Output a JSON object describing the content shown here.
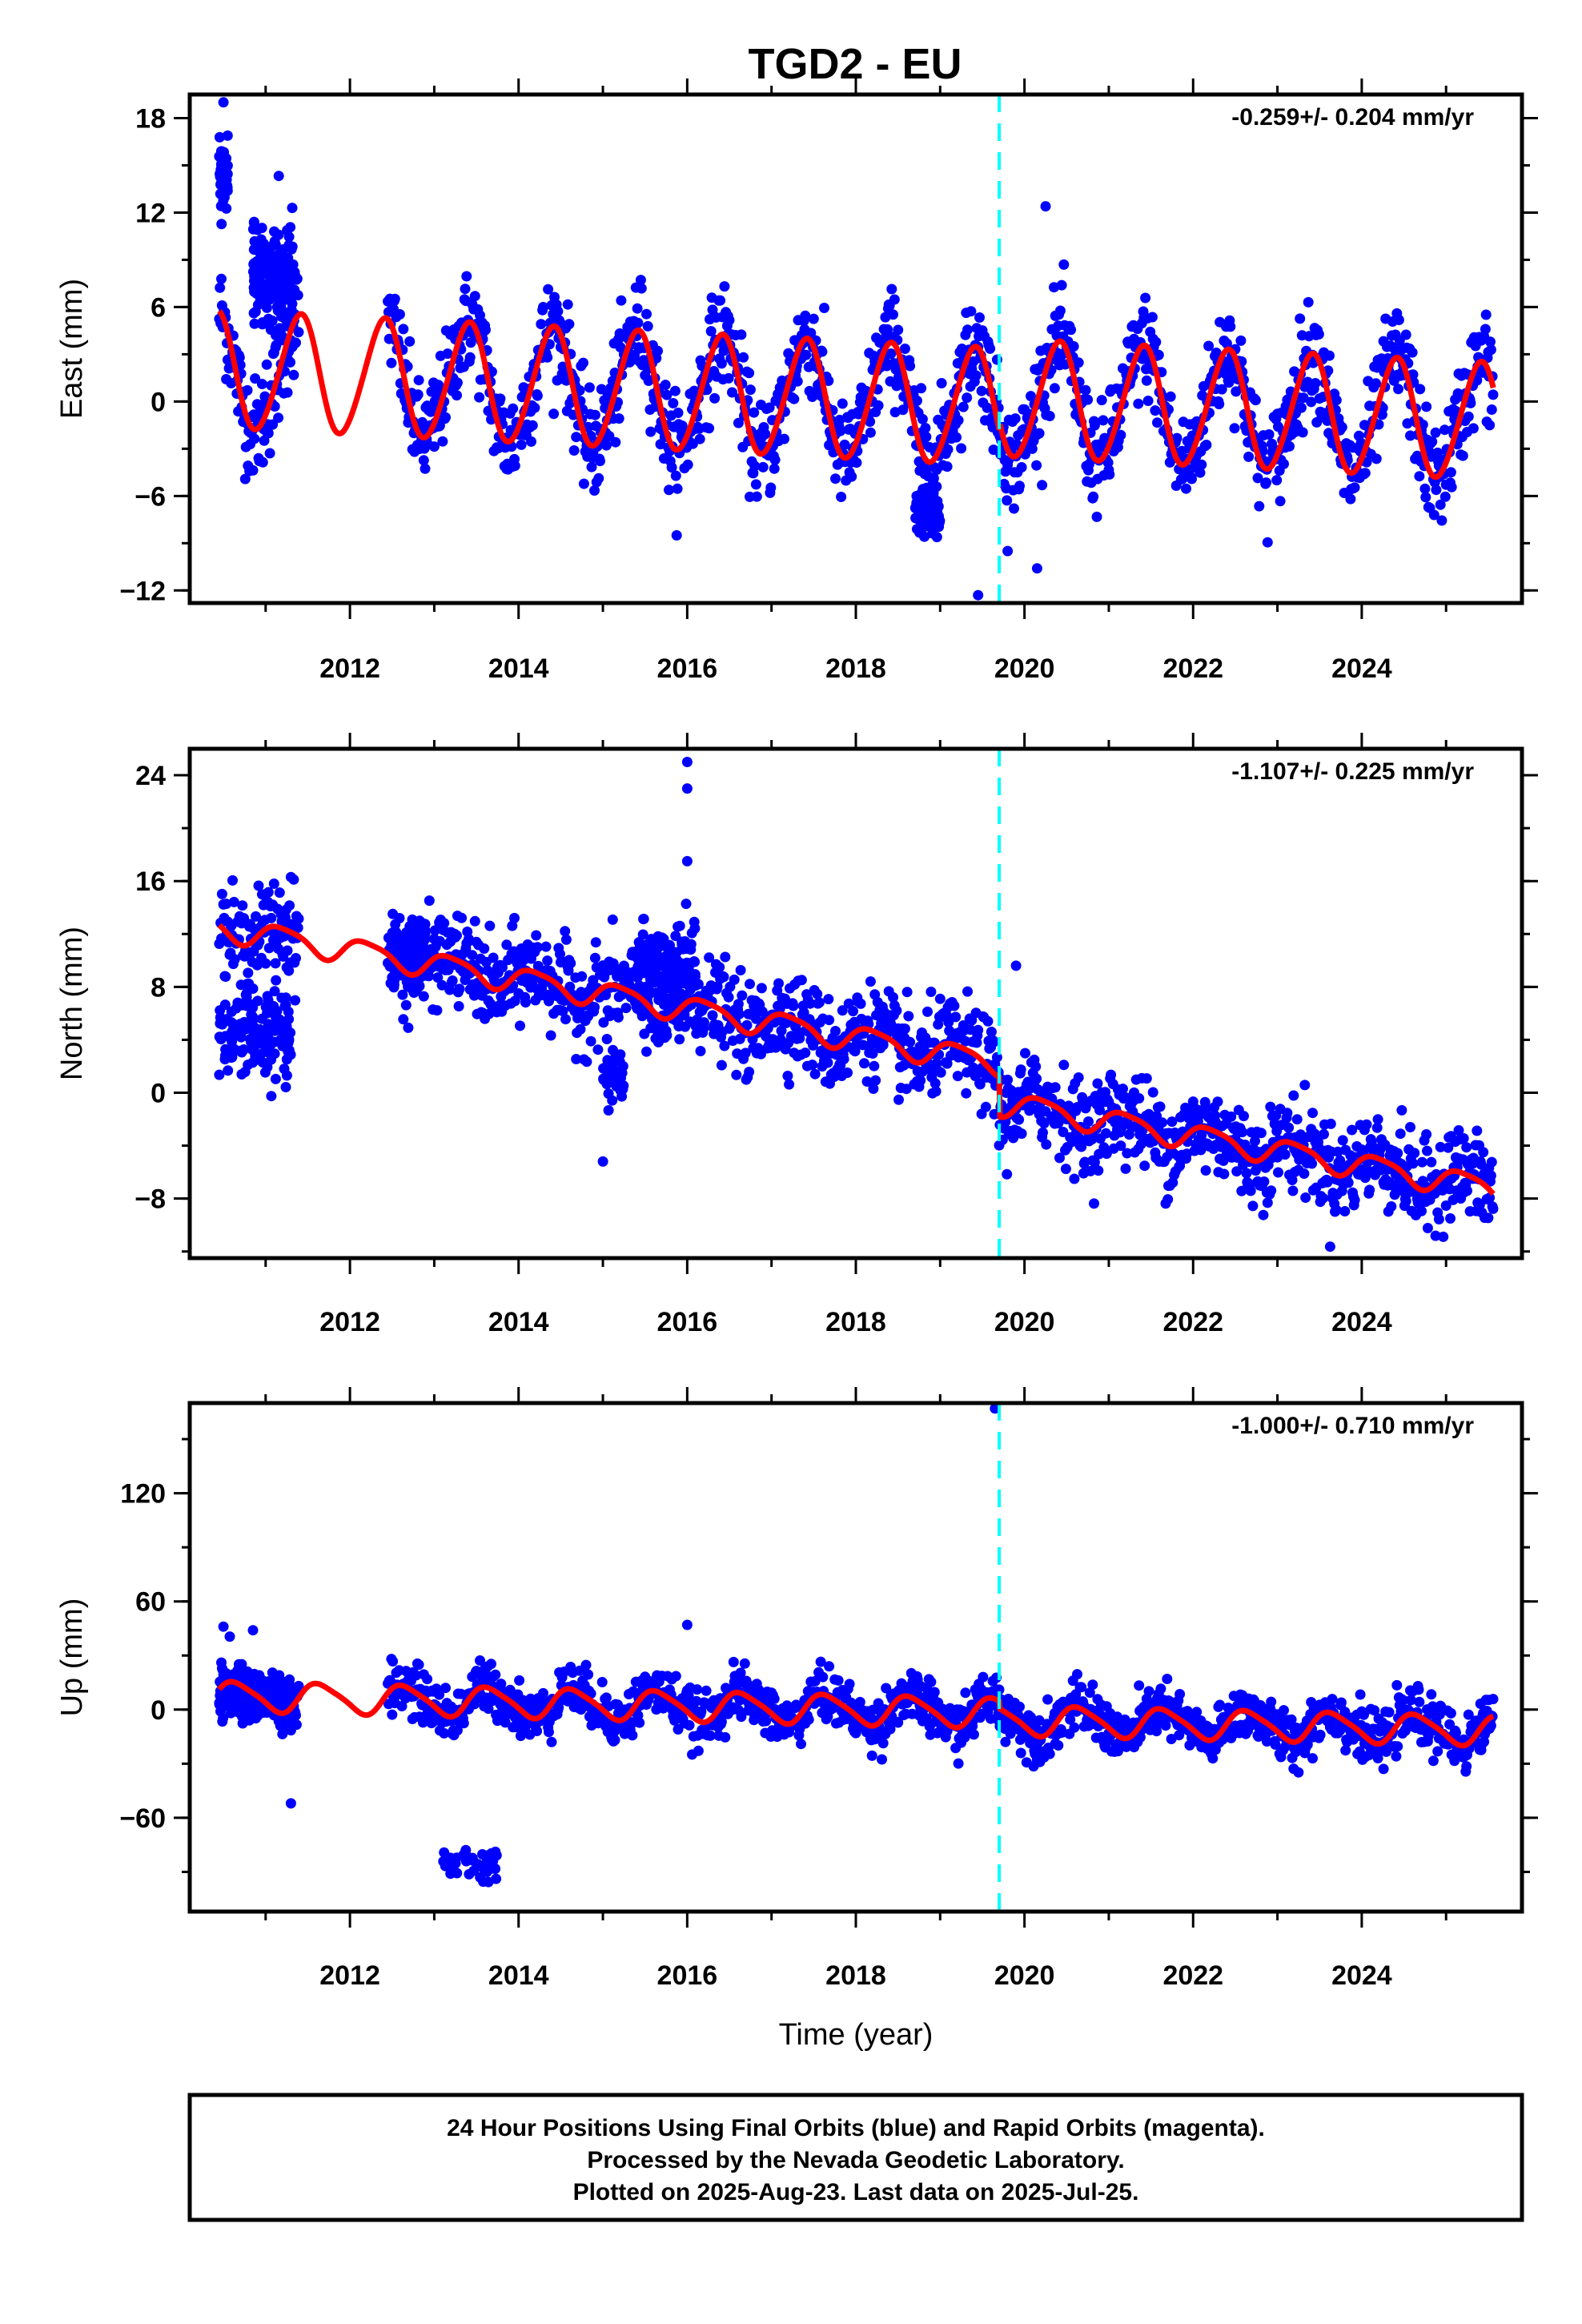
{
  "title": "TGD2 - EU",
  "caption": {
    "lines": [
      "24 Hour Positions Using Final Orbits (blue) and Rapid Orbits (magenta).",
      "Processed by the Nevada Geodetic Laboratory.",
      "Plotted on 2025-Aug-23. Last data on 2025-Jul-25."
    ]
  },
  "colors": {
    "points": "#0000ff",
    "model": "#ff0000",
    "equipment_change": "#00ffff",
    "axes": "#000000"
  },
  "chart_data": [
    {
      "type": "scatter",
      "id": "east",
      "xlabel": "",
      "ylabel": "East (mm)",
      "xlim": [
        2010.1,
        2025.9
      ],
      "ylim": [
        -12.8,
        19.5
      ],
      "x_ticks": [
        2012,
        2014,
        2016,
        2018,
        2020,
        2022,
        2024
      ],
      "y_ticks": [
        -12,
        -6,
        0,
        6,
        12,
        18
      ],
      "rate_label": "-0.259+/- 0.204 mm/yr",
      "equipment_change_x": 2019.7,
      "data_start_x": 2010.45,
      "data_end_x": 2025.56,
      "model": {
        "offset": 2.1,
        "rate": -0.259,
        "annual_amplitude": 3.7,
        "annual_phase_peak": 0.4,
        "semiannual_amplitude": 0.3,
        "steps": [
          {
            "x": 2019.7,
            "size": 0.6
          }
        ],
        "noise": 1.6
      },
      "clusters": [
        {
          "x_start": 2010.45,
          "x_end": 2010.55,
          "y_mean": 14.5,
          "y_spread": 2.0,
          "count": 60
        },
        {
          "x_start": 2010.85,
          "x_end": 2011.35,
          "y_mean": 8.0,
          "y_spread": 3.6,
          "count": 180
        },
        {
          "x_start": 2018.7,
          "x_end": 2019.0,
          "y_mean": -7.0,
          "y_spread": 1.6,
          "count": 70
        }
      ],
      "outliers": [
        [
          2010.5,
          19.0
        ],
        [
          2019.45,
          -12.3
        ],
        [
          2020.25,
          12.4
        ],
        [
          2020.15,
          -10.6
        ],
        [
          2019.8,
          -9.5
        ]
      ]
    },
    {
      "type": "scatter",
      "id": "north",
      "xlabel": "",
      "ylabel": "North (mm)",
      "xlim": [
        2010.1,
        2025.9
      ],
      "ylim": [
        -12.5,
        26
      ],
      "x_ticks": [
        2012,
        2014,
        2016,
        2018,
        2020,
        2022,
        2024
      ],
      "y_ticks": [
        -8,
        0,
        8,
        16,
        24
      ],
      "rate_label": "-1.107+/- 0.225 mm/yr",
      "equipment_change_x": 2019.7,
      "data_start_x": 2010.45,
      "data_end_x": 2025.56,
      "model": {
        "offset": 13.0,
        "rate": -1.107,
        "annual_amplitude": 0.9,
        "annual_phase_peak": 0.2,
        "semiannual_amplitude": 0.2,
        "steps": [
          {
            "x": 2019.7,
            "size": -3.0
          }
        ],
        "noise": 1.7
      },
      "clusters": [
        {
          "x_start": 2012.5,
          "x_end": 2012.9,
          "y_mean": 11.0,
          "y_spread": 2.5,
          "count": 110
        },
        {
          "x_start": 2015.4,
          "x_end": 2016.1,
          "y_mean": 9.5,
          "y_spread": 2.5,
          "count": 180
        },
        {
          "x_start": 2010.45,
          "x_end": 2011.3,
          "y_mean": 4.5,
          "y_spread": 3.2,
          "count": 140
        },
        {
          "x_start": 2015.0,
          "x_end": 2015.25,
          "y_mean": 1.5,
          "y_spread": 2.5,
          "count": 40
        }
      ],
      "outliers": [
        [
          2016.0,
          25.0
        ],
        [
          2016.0,
          23.0
        ],
        [
          2016.0,
          17.5
        ],
        [
          2011.3,
          16.3
        ],
        [
          2019.9,
          9.6
        ],
        [
          2015.0,
          -5.2
        ]
      ]
    },
    {
      "type": "scatter",
      "id": "up",
      "xlabel": "Time (year)",
      "ylabel": "Up (mm)",
      "xlim": [
        2010.1,
        2025.9
      ],
      "ylim": [
        -112,
        170
      ],
      "x_ticks": [
        2012,
        2014,
        2016,
        2018,
        2020,
        2022,
        2024
      ],
      "y_ticks": [
        -60,
        0,
        60,
        120
      ],
      "rate_label": "-1.000+/- 0.710 mm/yr",
      "equipment_change_x": 2019.7,
      "data_start_x": 2010.45,
      "data_end_x": 2025.56,
      "model": {
        "offset": 8.0,
        "rate": -1.0,
        "annual_amplitude": 8.0,
        "annual_phase_peak": 0.65,
        "semiannual_amplitude": 1.5,
        "steps": [
          {
            "x": 2019.7,
            "size": -4.0
          }
        ],
        "noise": 7.0
      },
      "clusters": [
        {
          "x_start": 2013.1,
          "x_end": 2013.75,
          "y_mean": -85.0,
          "y_spread": 9.0,
          "count": 45
        },
        {
          "x_start": 2010.45,
          "x_end": 2011.35,
          "y_mean": 5.0,
          "y_spread": 12.0,
          "count": 120
        }
      ],
      "outliers": [
        [
          2019.65,
          167.0
        ],
        [
          2016.0,
          47.0
        ],
        [
          2010.5,
          46.0
        ],
        [
          2011.3,
          -52.0
        ],
        [
          2010.85,
          44.0
        ]
      ]
    }
  ]
}
